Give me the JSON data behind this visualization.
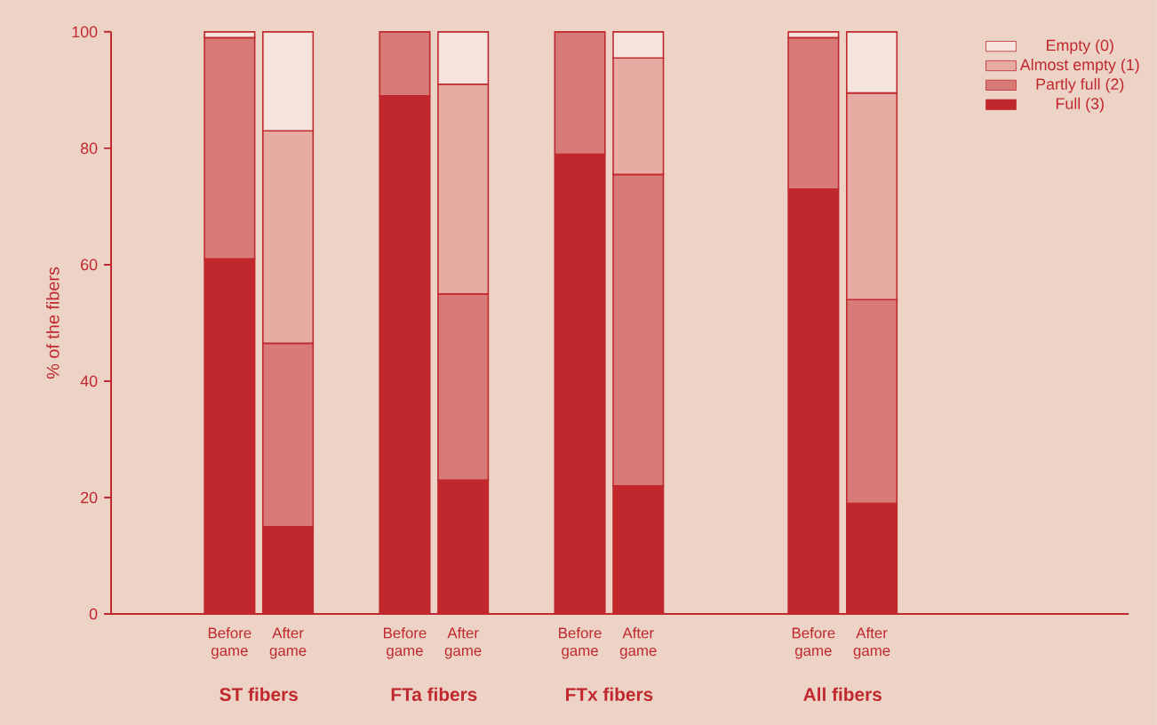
{
  "chart_data": {
    "type": "bar",
    "stacked": true,
    "ylabel": "% of the fibers",
    "categories": [
      "Before game",
      "After game",
      null,
      "Before game",
      "After game",
      null,
      "Before game",
      "After game",
      null,
      null,
      "Before game",
      "After game"
    ],
    "series": [
      {
        "name": "Full (3)",
        "color": "#c0282d",
        "values": [
          61,
          15,
          null,
          89,
          23,
          null,
          79,
          22,
          null,
          null,
          73,
          19
        ]
      },
      {
        "name": "Partly full (2)",
        "color": "#d77a78",
        "values": [
          38,
          31.5,
          null,
          11,
          32,
          null,
          21,
          53.5,
          null,
          null,
          26,
          35
        ]
      },
      {
        "name": "Almost empty (1)",
        "color": "#e6aba3",
        "values": [
          null,
          36.5,
          null,
          null,
          36,
          null,
          null,
          20,
          null,
          null,
          null,
          35.5
        ]
      },
      {
        "name": "Empty (0)",
        "color": "#f5e4dc",
        "values": [
          1,
          17,
          null,
          null,
          9,
          null,
          null,
          4.5,
          null,
          null,
          1,
          10.5
        ]
      }
    ],
    "ylim": [
      0,
      100
    ],
    "yticks": [
      0,
      20,
      40,
      60,
      80,
      100
    ],
    "legend": "top right",
    "annotations": [
      "ST fibers",
      "FTa fibers",
      "FTx fibers",
      "All fibers"
    ]
  }
}
